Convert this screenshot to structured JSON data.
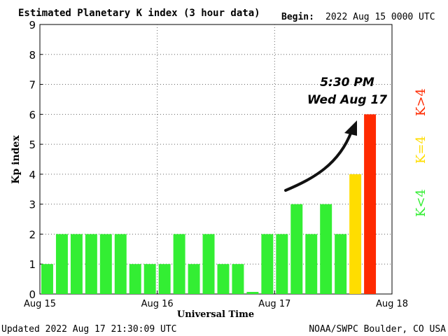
{
  "header": {
    "title": "Estimated Planetary K index (3 hour data)",
    "begin_label": "Begin:",
    "begin_value": "2022 Aug 15 0000 UTC"
  },
  "footer": {
    "updated": "Updated 2022 Aug 17 21:30:09 UTC",
    "credit": "NOAA/SWPC Boulder, CO USA"
  },
  "legend": {
    "low": "K<4",
    "mid": "K=4",
    "high": "K>4",
    "colors": {
      "low": "#33ee33",
      "mid": "#ffdd00",
      "high": "#ff2a00"
    }
  },
  "annotation": {
    "line1": "5:30 PM",
    "line2": "Wed Aug 17"
  },
  "chart_data": {
    "type": "bar",
    "title": "Estimated Planetary K index (3 hour data)",
    "xlabel": "Universal Time",
    "ylabel": "Kp index",
    "ylim": [
      0,
      9
    ],
    "yticks": [
      "0",
      "1",
      "2",
      "3",
      "4",
      "5",
      "6",
      "7",
      "8",
      "9"
    ],
    "xticks": [
      "Aug 15",
      "Aug 16",
      "Aug 17",
      "Aug 18"
    ],
    "grid": true,
    "values": [
      1,
      2,
      2,
      2,
      2,
      2,
      1,
      1,
      1,
      2,
      1,
      2,
      1,
      1,
      0.07,
      2,
      2,
      3,
      2,
      3,
      2,
      4,
      6
    ]
  }
}
